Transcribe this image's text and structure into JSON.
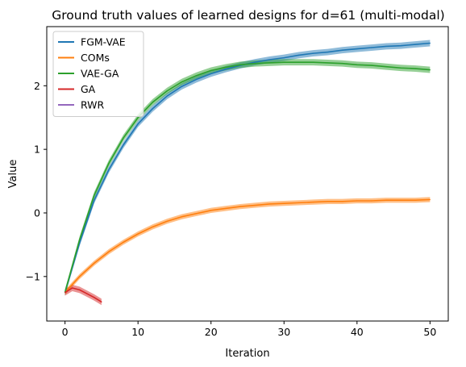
{
  "chart_data": {
    "type": "line",
    "title": "Ground truth values of learned designs for d=61 (multi-modal)",
    "xlabel": "Iteration",
    "ylabel": "Value",
    "xlim": [
      -2.5,
      52.5
    ],
    "ylim": [
      -1.7,
      2.93
    ],
    "xticks": [
      0,
      10,
      20,
      30,
      40,
      50
    ],
    "yticks": [
      -1,
      0,
      1,
      2
    ],
    "yticklabels": [
      "−1",
      "0",
      "1",
      "2"
    ],
    "grid": false,
    "legend": "upper-left",
    "series": [
      {
        "name": "FGM-VAE",
        "color": "#1f77b4",
        "x": [
          0,
          2,
          4,
          6,
          8,
          10,
          12,
          14,
          16,
          18,
          20,
          22,
          24,
          26,
          28,
          30,
          32,
          34,
          36,
          38,
          40,
          42,
          44,
          46,
          48,
          50
        ],
        "y": [
          -1.25,
          -0.47,
          0.2,
          0.68,
          1.07,
          1.4,
          1.64,
          1.84,
          1.99,
          2.1,
          2.19,
          2.26,
          2.32,
          2.37,
          2.41,
          2.44,
          2.48,
          2.51,
          2.53,
          2.56,
          2.58,
          2.6,
          2.62,
          2.63,
          2.65,
          2.67
        ],
        "band": 0.05
      },
      {
        "name": "COMs",
        "color": "#ff7f0e",
        "x": [
          0,
          2,
          4,
          6,
          8,
          10,
          12,
          14,
          16,
          18,
          20,
          22,
          24,
          26,
          28,
          30,
          32,
          34,
          36,
          38,
          40,
          42,
          44,
          46,
          48,
          50
        ],
        "y": [
          -1.25,
          -1.0,
          -0.79,
          -0.61,
          -0.46,
          -0.33,
          -0.22,
          -0.13,
          -0.06,
          -0.01,
          0.04,
          0.07,
          0.1,
          0.12,
          0.14,
          0.15,
          0.16,
          0.17,
          0.18,
          0.18,
          0.19,
          0.19,
          0.2,
          0.2,
          0.2,
          0.21
        ],
        "band": 0.04
      },
      {
        "name": "VAE-GA",
        "color": "#2ca02c",
        "x": [
          0,
          2,
          4,
          6,
          8,
          10,
          12,
          14,
          16,
          18,
          20,
          22,
          24,
          26,
          28,
          30,
          32,
          34,
          36,
          38,
          40,
          42,
          44,
          46,
          48,
          50
        ],
        "y": [
          -1.25,
          -0.42,
          0.28,
          0.78,
          1.18,
          1.5,
          1.74,
          1.92,
          2.06,
          2.16,
          2.24,
          2.29,
          2.33,
          2.35,
          2.36,
          2.37,
          2.37,
          2.37,
          2.36,
          2.35,
          2.33,
          2.32,
          2.3,
          2.28,
          2.27,
          2.25
        ],
        "band": 0.05
      },
      {
        "name": "GA",
        "color": "#d62728",
        "x": [
          0,
          1,
          2,
          3,
          4,
          5
        ],
        "y": [
          -1.25,
          -1.18,
          -1.21,
          -1.27,
          -1.33,
          -1.4
        ],
        "band": 0.05
      },
      {
        "name": "RWR",
        "color": "#9467bd",
        "x": [],
        "y": [],
        "band": 0.05
      }
    ]
  }
}
